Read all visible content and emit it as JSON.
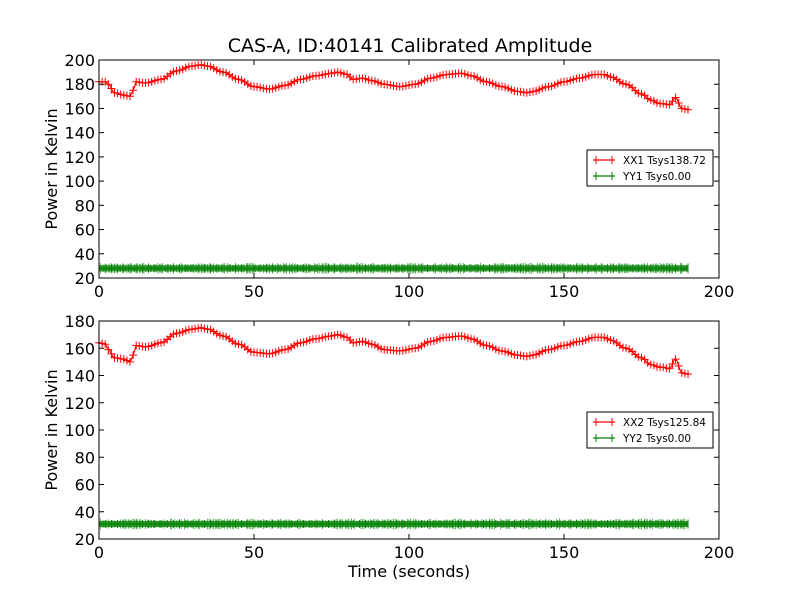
{
  "title": "CAS-A, ID:40141 Calibrated Amplitude",
  "colors": {
    "xx": "#ff0000",
    "yy": "#008000",
    "axes": "#000000"
  },
  "chart_data": [
    {
      "type": "line",
      "xlabel": "",
      "ylabel": "Power in Kelvin",
      "xlim": [
        0,
        200
      ],
      "ylim": [
        20,
        200
      ],
      "xticks": [
        0,
        50,
        100,
        150,
        200
      ],
      "yticks": [
        20,
        40,
        60,
        80,
        100,
        120,
        140,
        160,
        180,
        200
      ],
      "grid": false,
      "legend": "center-right",
      "series": [
        {
          "name": "XX1 Tsys138.72",
          "color": "#ff0000",
          "marker": "+",
          "x": [
            0,
            2,
            3,
            5,
            8,
            10,
            11,
            12,
            15,
            20,
            25,
            30,
            33,
            35,
            40,
            45,
            50,
            55,
            60,
            65,
            70,
            75,
            77,
            80,
            82,
            85,
            88,
            92,
            97,
            102,
            107,
            112,
            117,
            120,
            125,
            130,
            135,
            138,
            140,
            145,
            150,
            155,
            160,
            163,
            165,
            170,
            175,
            178,
            181,
            182,
            184,
            186,
            188,
            190
          ],
          "y": [
            182,
            182,
            180,
            173,
            171,
            170,
            175,
            182,
            181,
            184,
            191,
            195,
            196,
            195,
            190,
            184,
            178,
            176,
            179,
            184,
            187,
            189,
            190,
            188,
            184,
            185,
            183,
            180,
            178,
            180,
            185,
            188,
            189,
            187,
            182,
            178,
            174,
            173,
            174,
            178,
            182,
            185,
            188,
            188,
            186,
            180,
            172,
            167,
            164,
            164,
            163,
            169,
            160,
            159
          ]
        },
        {
          "name": "YY1 Tsys0.00",
          "color": "#008000",
          "marker": "+",
          "x": [
            0,
            190
          ],
          "y": [
            28,
            28
          ]
        }
      ]
    },
    {
      "type": "line",
      "xlabel": "Time (seconds)",
      "ylabel": "Power in Kelvin",
      "xlim": [
        0,
        200
      ],
      "ylim": [
        20,
        180
      ],
      "xticks": [
        0,
        50,
        100,
        150,
        200
      ],
      "yticks": [
        20,
        40,
        60,
        80,
        100,
        120,
        140,
        160,
        180
      ],
      "grid": false,
      "legend": "center-right",
      "series": [
        {
          "name": "XX2 Tsys125.84",
          "color": "#ff0000",
          "marker": "+",
          "x": [
            0,
            2,
            3,
            5,
            8,
            10,
            11,
            12,
            15,
            20,
            25,
            30,
            33,
            35,
            40,
            45,
            50,
            55,
            60,
            65,
            70,
            75,
            77,
            80,
            82,
            85,
            88,
            92,
            97,
            102,
            107,
            112,
            117,
            120,
            125,
            130,
            135,
            138,
            140,
            145,
            150,
            155,
            160,
            163,
            165,
            170,
            175,
            178,
            181,
            182,
            184,
            186,
            188,
            190
          ],
          "y": [
            164,
            163,
            159,
            153,
            152,
            150,
            155,
            162,
            161,
            164,
            171,
            174,
            175,
            174,
            169,
            163,
            157,
            156,
            159,
            164,
            167,
            169,
            170,
            168,
            164,
            165,
            163,
            159,
            158,
            160,
            165,
            168,
            169,
            167,
            162,
            158,
            155,
            154,
            155,
            159,
            162,
            165,
            168,
            168,
            166,
            160,
            153,
            148,
            146,
            146,
            145,
            152,
            142,
            141
          ]
        },
        {
          "name": "YY2 Tsys0.00",
          "color": "#008000",
          "marker": "+",
          "x": [
            0,
            190
          ],
          "y": [
            31,
            31
          ]
        }
      ]
    }
  ]
}
